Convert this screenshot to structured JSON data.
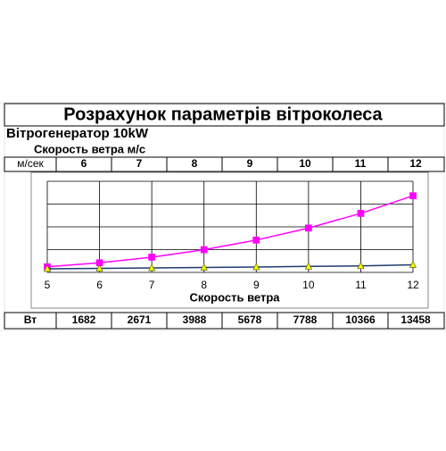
{
  "header": {
    "title": "Розрахунок параметрів вітроколеса",
    "subtitle": "Вітрогенератор 10kW",
    "section": "Скорость ветра м/с"
  },
  "table": {
    "speed_label": "м/сек",
    "power_label": "Вт"
  },
  "chart_data": {
    "type": "line",
    "x_label": "Скорость ветра",
    "x": [
      5,
      6,
      7,
      8,
      9,
      10,
      11,
      12
    ],
    "xlim": [
      5,
      12
    ],
    "ylim": [
      0,
      16000
    ],
    "yticks": [
      0,
      4000,
      8000,
      12000,
      16000
    ],
    "grid": true,
    "series": [
      {
        "color": "#ff00ff",
        "marker": "square",
        "marker_color": "#ff00ff",
        "values": [
          973,
          1682,
          2671,
          3988,
          5678,
          7788,
          10366,
          13458
        ]
      },
      {
        "color": "#1f3c6e",
        "marker": "triangle",
        "marker_color": "#ffff00",
        "values": [
          630,
          700,
          780,
          860,
          940,
          1050,
          1130,
          1330
        ]
      }
    ]
  }
}
